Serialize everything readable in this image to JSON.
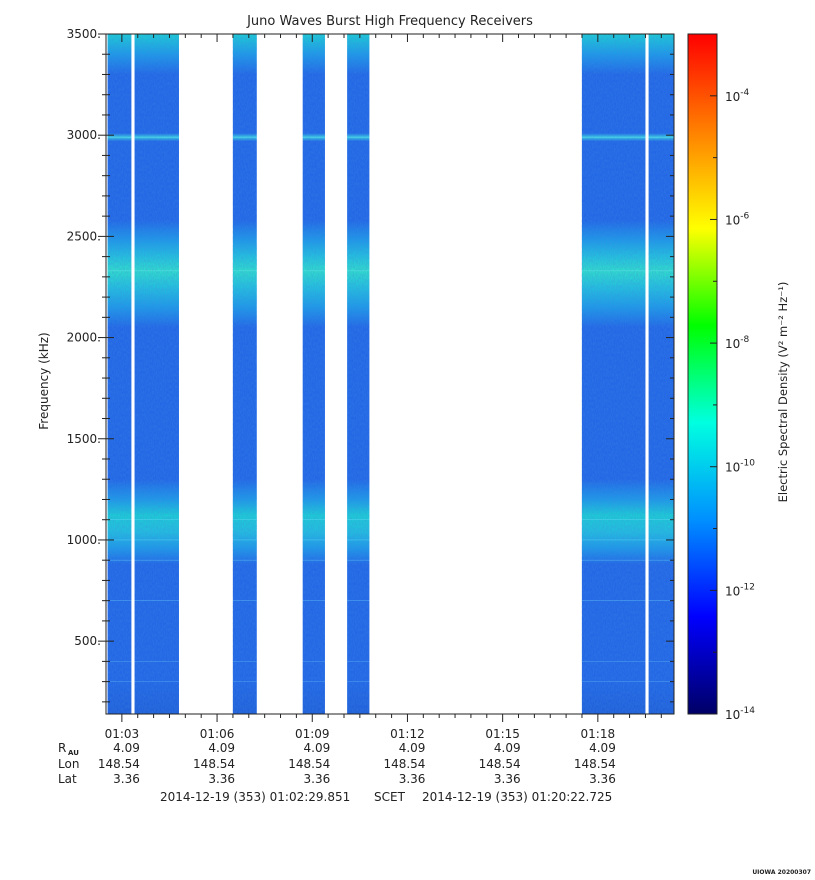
{
  "chart_data": {
    "type": "heatmap",
    "title": "Juno Waves Burst High Frequency Receivers",
    "ylabel": "Frequency (kHz)",
    "colorbar_label": "Electric Spectral Density (V² m⁻² Hz⁻¹)",
    "ylim": [
      140,
      3500
    ],
    "y_ticks": [
      "500.",
      "1000.",
      "1500.",
      "2000.",
      "2500.",
      "3000.",
      "3500."
    ],
    "y_tick_values": [
      500,
      1000,
      1500,
      2000,
      2500,
      3000,
      3500
    ],
    "x_range_minutes": [
      62.5,
      80.4
    ],
    "x_tick_labels": [
      "01:03",
      "01:06",
      "01:09",
      "01:12",
      "01:15",
      "01:18"
    ],
    "x_tick_minutes": [
      63,
      66,
      69,
      72,
      75,
      78
    ],
    "colorbar": {
      "scale": "log",
      "range_exponent": [
        -14,
        -3
      ],
      "tick_exponents": [
        -14,
        -12,
        -10,
        -8,
        -6,
        -4
      ],
      "tick_base": "10",
      "colors": [
        "#000066",
        "#0000ff",
        "#0090ff",
        "#00ffe0",
        "#00ff00",
        "#ffff00",
        "#ff8000",
        "#ff0000"
      ]
    },
    "data_segments_minutes": [
      [
        62.55,
        63.3
      ],
      [
        63.4,
        64.8
      ],
      [
        66.5,
        67.25
      ],
      [
        68.7,
        69.4
      ],
      [
        70.1,
        70.8
      ],
      [
        77.5,
        79.5
      ],
      [
        79.6,
        80.4
      ]
    ],
    "band_frequencies_khz": [
      3450,
      2990,
      2500,
      2330,
      1100,
      1000
    ],
    "typical_density_exponent": -12
  },
  "ephemeris": {
    "rows": [
      {
        "label": "R",
        "sub": "AU",
        "values": [
          "4.09",
          "4.09",
          "4.09",
          "4.09",
          "4.09",
          "4.09"
        ]
      },
      {
        "label": "Lon",
        "sub": "",
        "values": [
          "148.54",
          "148.54",
          "148.54",
          "148.54",
          "148.54",
          "148.54"
        ]
      },
      {
        "label": "Lat",
        "sub": "",
        "values": [
          "3.36",
          "3.36",
          "3.36",
          "3.36",
          "3.36",
          "3.36"
        ]
      }
    ]
  },
  "time_range": {
    "start": "2014-12-19 (353) 01:02:29.851",
    "frame": "SCET",
    "end": "2014-12-19 (353) 01:20:22.725"
  },
  "footer_stamp": "UIOWA 20200307"
}
